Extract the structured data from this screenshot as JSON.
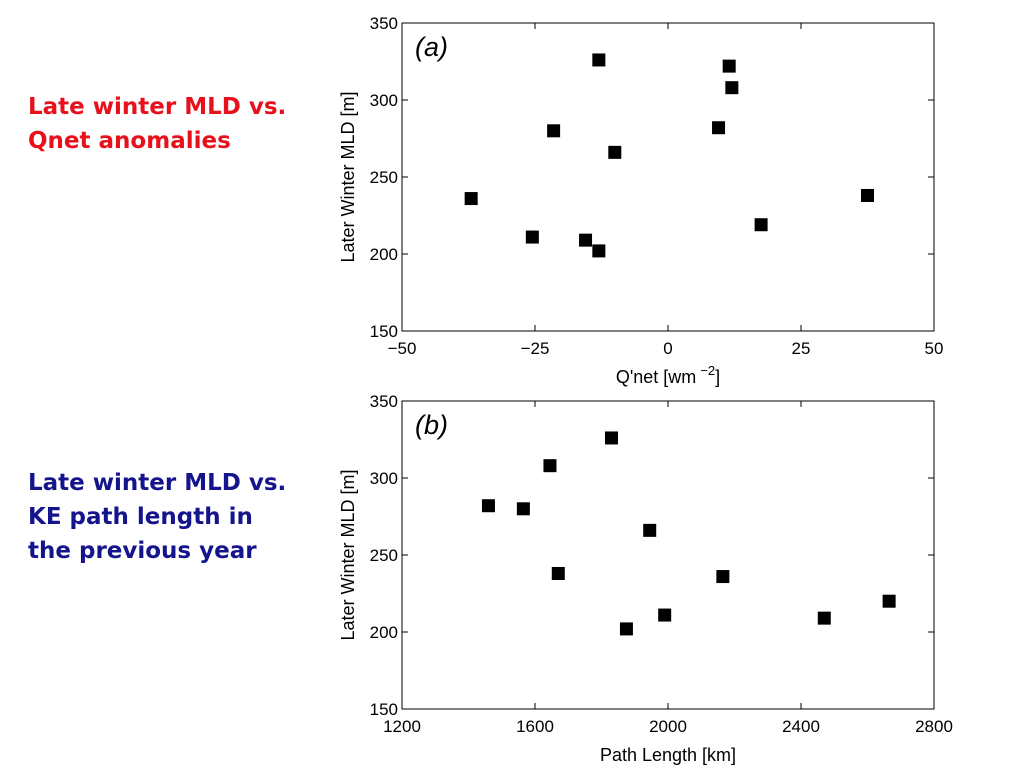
{
  "captions": [
    {
      "lines": [
        "Late winter MLD vs.",
        "Qnet anomalies"
      ],
      "color": "#e8101a"
    },
    {
      "lines": [
        "Late winter MLD vs.",
        "KE path length in",
        "the previous year"
      ],
      "color": "#14148c"
    }
  ],
  "chart_data": [
    {
      "type": "scatter",
      "panel_label": "(a)",
      "xlabel": "Q'net [wm",
      "xlabel_sup": "−2",
      "xlabel_end": "]",
      "ylabel": "Later Winter MLD [m]",
      "xlim": [
        -50,
        50
      ],
      "ylim": [
        150,
        350
      ],
      "xticks": [
        -50,
        -25,
        0,
        25,
        50
      ],
      "xtick_labels": [
        "−50",
        "−25",
        "0",
        "25",
        "50"
      ],
      "yticks": [
        150,
        200,
        250,
        300,
        350
      ],
      "ytick_labels": [
        "150",
        "200",
        "250",
        "300",
        "350"
      ],
      "grid": false,
      "marker": "square",
      "marker_color": "#000000",
      "points": [
        {
          "x": -37,
          "y": 236
        },
        {
          "x": -25.5,
          "y": 211
        },
        {
          "x": -21.5,
          "y": 280
        },
        {
          "x": -15.5,
          "y": 209
        },
        {
          "x": -13,
          "y": 326
        },
        {
          "x": -13,
          "y": 202
        },
        {
          "x": -10,
          "y": 266
        },
        {
          "x": 9.5,
          "y": 282
        },
        {
          "x": 11.5,
          "y": 322
        },
        {
          "x": 12,
          "y": 308
        },
        {
          "x": 17.5,
          "y": 219
        },
        {
          "x": 37.5,
          "y": 238
        }
      ]
    },
    {
      "type": "scatter",
      "panel_label": "(b)",
      "xlabel": "Path Length [km]",
      "xlabel_sup": "",
      "xlabel_end": "",
      "ylabel": "Later Winter MLD [m]",
      "xlim": [
        1200,
        2800
      ],
      "ylim": [
        150,
        350
      ],
      "xticks": [
        1200,
        1600,
        2000,
        2400,
        2800
      ],
      "xtick_labels": [
        "1200",
        "1600",
        "2000",
        "2400",
        "2800"
      ],
      "yticks": [
        150,
        200,
        250,
        300,
        350
      ],
      "ytick_labels": [
        "150",
        "200",
        "250",
        "300",
        "350"
      ],
      "grid": false,
      "marker": "square",
      "marker_color": "#000000",
      "points": [
        {
          "x": 1460,
          "y": 282
        },
        {
          "x": 1565,
          "y": 280
        },
        {
          "x": 1645,
          "y": 308
        },
        {
          "x": 1670,
          "y": 238
        },
        {
          "x": 1830,
          "y": 326
        },
        {
          "x": 1875,
          "y": 202
        },
        {
          "x": 1945,
          "y": 266
        },
        {
          "x": 1990,
          "y": 211
        },
        {
          "x": 2165,
          "y": 236
        },
        {
          "x": 2470,
          "y": 209
        },
        {
          "x": 2665,
          "y": 220
        }
      ]
    }
  ]
}
